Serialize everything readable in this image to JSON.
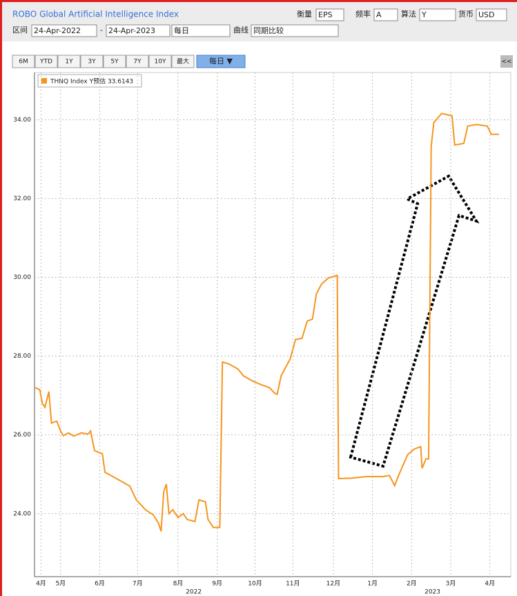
{
  "toolbar": {
    "title": "ROBO Global Artificial Intelligence Index",
    "measure_label": "衡量",
    "measure": "EPS",
    "freq_label": "频率",
    "freq": "A",
    "algo_label": "算法",
    "algo": "Y",
    "currency_label": "货币",
    "currency": "USD",
    "range_label": "区间",
    "start": "24-Apr-2022",
    "dash": "-",
    "end": "24-Apr-2023",
    "period": "每日",
    "curve_label": "曲线",
    "curve": "同期比较",
    "buttons": [
      "6M",
      "YTD",
      "1Y",
      "3Y",
      "5Y",
      "7Y",
      "10Y",
      "最大"
    ],
    "period_button": "每日 ▼",
    "collapse": "<<"
  },
  "chart_data": {
    "type": "line",
    "legend": "THNQ Index Y预估 33.6143",
    "x": [
      0,
      4,
      6,
      8,
      11,
      13,
      17,
      20,
      22,
      26,
      30,
      36,
      41,
      43,
      46,
      52,
      54,
      58,
      66,
      73,
      78,
      85,
      91,
      95,
      97,
      99,
      101,
      103,
      106,
      110,
      114,
      117,
      123,
      126,
      131,
      133,
      137,
      142,
      144,
      149,
      156,
      160,
      167,
      174,
      180,
      184,
      186,
      189,
      196,
      200,
      205,
      209,
      213,
      216,
      220,
      225,
      232,
      233,
      243,
      254,
      267,
      272,
      276,
      279,
      286,
      291,
      296,
      297,
      300,
      302,
      304,
      306,
      312,
      320,
      322,
      329,
      332,
      339,
      347,
      350,
      356
    ],
    "series": [
      {
        "name": "THNQ Index",
        "color": "#f7941d",
        "values": [
          27.2,
          27.15,
          26.8,
          26.7,
          27.1,
          26.3,
          26.35,
          26.1,
          25.98,
          26.05,
          25.97,
          26.05,
          26.02,
          26.1,
          25.6,
          25.52,
          25.05,
          24.98,
          24.83,
          24.7,
          24.35,
          24.1,
          23.97,
          23.76,
          23.55,
          24.55,
          24.75,
          24.0,
          24.1,
          23.9,
          24.0,
          23.85,
          23.8,
          24.35,
          24.3,
          23.85,
          23.65,
          23.65,
          27.85,
          27.8,
          27.67,
          27.5,
          27.37,
          27.27,
          27.2,
          27.06,
          27.03,
          27.5,
          27.93,
          28.42,
          28.45,
          28.89,
          28.94,
          29.58,
          29.83,
          29.98,
          30.05,
          24.89,
          24.9,
          24.94,
          24.94,
          24.97,
          24.71,
          24.97,
          25.5,
          25.64,
          25.7,
          25.15,
          25.39,
          25.39,
          33.32,
          33.93,
          34.16,
          34.1,
          33.36,
          33.4,
          33.84,
          33.88,
          33.84,
          33.63,
          33.63
        ]
      }
    ],
    "xlim": [
      0,
      365
    ],
    "xticks": [
      {
        "value": 5,
        "label": "4月"
      },
      {
        "value": 20,
        "label": "5月"
      },
      {
        "value": 50,
        "label": "6月"
      },
      {
        "value": 79,
        "label": "7月"
      },
      {
        "value": 110,
        "label": "8月"
      },
      {
        "value": 140,
        "label": "9月"
      },
      {
        "value": 169,
        "label": "10月"
      },
      {
        "value": 198,
        "label": "11月"
      },
      {
        "value": 229,
        "label": "12月"
      },
      {
        "value": 259,
        "label": "1月"
      },
      {
        "value": 289,
        "label": "2月"
      },
      {
        "value": 319,
        "label": "3月"
      },
      {
        "value": 349,
        "label": "4月"
      }
    ],
    "year_labels": [
      {
        "value": 122,
        "label": "2022"
      },
      {
        "value": 305,
        "label": "2023"
      }
    ],
    "ylim": [
      22.4,
      35.2
    ],
    "yticks": [
      {
        "value": 24,
        "label": "24.00"
      },
      {
        "value": 26,
        "label": "26.00"
      },
      {
        "value": 28,
        "label": "28.00"
      },
      {
        "value": 30,
        "label": "30.00"
      },
      {
        "value": 32,
        "label": "32.00"
      },
      {
        "value": 34,
        "label": "34.00"
      }
    ],
    "grid": true
  }
}
